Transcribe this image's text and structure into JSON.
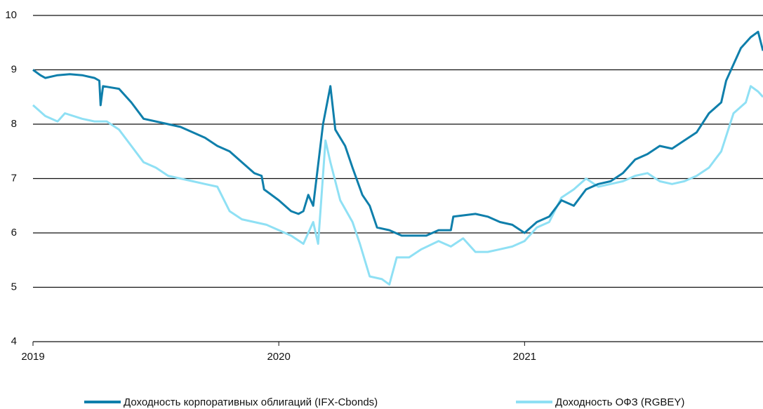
{
  "chart_data": {
    "type": "line",
    "xlim": [
      2019,
      2021.97
    ],
    "xticks": [
      2019,
      2020,
      2021
    ],
    "ylim": [
      4,
      10
    ],
    "yticks": [
      4,
      5,
      6,
      7,
      8,
      9,
      10
    ],
    "grid": true,
    "legend": "bottom",
    "series": [
      {
        "name": "Доходность корпоративных облигаций (IFX-Cbonds)",
        "color": "#0f7fab",
        "x": [
          2019.0,
          2019.03,
          2019.05,
          2019.1,
          2019.15,
          2019.2,
          2019.25,
          2019.27,
          2019.275,
          2019.285,
          2019.35,
          2019.4,
          2019.45,
          2019.5,
          2019.55,
          2019.6,
          2019.65,
          2019.7,
          2019.75,
          2019.8,
          2019.85,
          2019.9,
          2019.93,
          2019.94,
          2020.0,
          2020.05,
          2020.08,
          2020.1,
          2020.12,
          2020.14,
          2020.18,
          2020.21,
          2020.23,
          2020.27,
          2020.3,
          2020.34,
          2020.37,
          2020.4,
          2020.45,
          2020.5,
          2020.55,
          2020.6,
          2020.65,
          2020.7,
          2020.71,
          2020.8,
          2020.85,
          2020.9,
          2020.95,
          2021.0,
          2021.05,
          2021.1,
          2021.15,
          2021.2,
          2021.25,
          2021.3,
          2021.35,
          2021.4,
          2021.45,
          2021.5,
          2021.55,
          2021.6,
          2021.65,
          2021.7,
          2021.75,
          2021.8,
          2021.82,
          2021.85,
          2021.88,
          2021.92,
          2021.95,
          2021.97
        ],
        "values": [
          9.0,
          8.9,
          8.85,
          8.9,
          8.92,
          8.9,
          8.85,
          8.8,
          8.35,
          8.7,
          8.65,
          8.4,
          8.1,
          8.05,
          8.0,
          7.95,
          7.85,
          7.75,
          7.6,
          7.5,
          7.3,
          7.1,
          7.05,
          6.8,
          6.6,
          6.4,
          6.35,
          6.4,
          6.7,
          6.5,
          8.0,
          8.7,
          7.9,
          7.6,
          7.2,
          6.7,
          6.5,
          6.1,
          6.05,
          5.95,
          5.95,
          5.95,
          6.05,
          6.05,
          6.3,
          6.35,
          6.3,
          6.2,
          6.15,
          6.0,
          6.2,
          6.3,
          6.6,
          6.5,
          6.8,
          6.9,
          6.95,
          7.1,
          7.35,
          7.45,
          7.6,
          7.55,
          7.7,
          7.85,
          8.2,
          8.4,
          8.8,
          9.1,
          9.4,
          9.6,
          9.7,
          9.35
        ]
      },
      {
        "name": "Доходность ОФЗ (RGBEY)",
        "color": "#8fe0f4",
        "x": [
          2019.0,
          2019.05,
          2019.1,
          2019.13,
          2019.2,
          2019.25,
          2019.3,
          2019.35,
          2019.4,
          2019.45,
          2019.5,
          2019.55,
          2019.6,
          2019.65,
          2019.7,
          2019.75,
          2019.8,
          2019.85,
          2019.9,
          2019.95,
          2020.0,
          2020.05,
          2020.1,
          2020.14,
          2020.16,
          2020.19,
          2020.21,
          2020.25,
          2020.3,
          2020.33,
          2020.37,
          2020.42,
          2020.45,
          2020.48,
          2020.53,
          2020.58,
          2020.65,
          2020.7,
          2020.75,
          2020.8,
          2020.85,
          2020.9,
          2020.95,
          2021.0,
          2021.05,
          2021.1,
          2021.15,
          2021.2,
          2021.25,
          2021.3,
          2021.35,
          2021.4,
          2021.45,
          2021.5,
          2021.55,
          2021.6,
          2021.65,
          2021.7,
          2021.75,
          2021.8,
          2021.85,
          2021.9,
          2021.92,
          2021.95,
          2021.97
        ],
        "values": [
          8.35,
          8.15,
          8.05,
          8.2,
          8.1,
          8.05,
          8.05,
          7.9,
          7.6,
          7.3,
          7.2,
          7.05,
          7.0,
          6.95,
          6.9,
          6.85,
          6.4,
          6.25,
          6.2,
          6.15,
          6.05,
          5.95,
          5.8,
          6.2,
          5.8,
          7.7,
          7.3,
          6.6,
          6.2,
          5.8,
          5.2,
          5.15,
          5.05,
          5.55,
          5.55,
          5.7,
          5.85,
          5.75,
          5.9,
          5.65,
          5.65,
          5.7,
          5.75,
          5.85,
          6.1,
          6.2,
          6.65,
          6.8,
          7.0,
          6.85,
          6.9,
          6.95,
          7.05,
          7.1,
          6.95,
          6.9,
          6.95,
          7.05,
          7.2,
          7.5,
          8.2,
          8.4,
          8.7,
          8.6,
          8.5
        ]
      }
    ]
  }
}
